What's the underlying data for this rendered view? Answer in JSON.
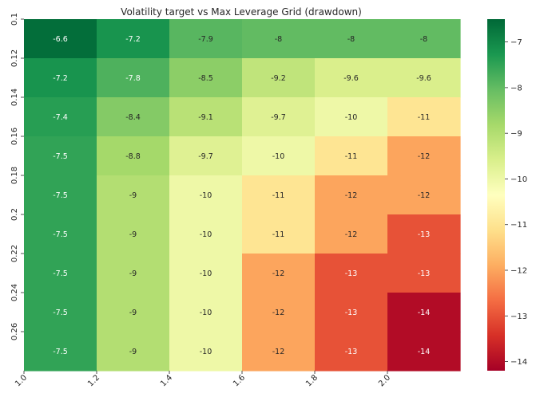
{
  "chart_data": {
    "type": "heatmap",
    "title": "Volatility target vs Max Leverage Grid (drawdown)",
    "xlabel": "",
    "ylabel": "",
    "x_tick_labels": [
      "1.0",
      "1.2",
      "1.4",
      "1.6",
      "1.8",
      "2.0"
    ],
    "y_tick_labels": [
      "0.1",
      "0.12",
      "0.14",
      "0.16",
      "0.18",
      "0.2",
      "0.22",
      "0.24",
      "0.26"
    ],
    "values": [
      [
        -6.6,
        -7.2,
        -7.9,
        -8,
        -8,
        -8
      ],
      [
        -7.2,
        -7.8,
        -8.5,
        -9.2,
        -9.6,
        -9.6
      ],
      [
        -7.4,
        -8.4,
        -9.1,
        -9.7,
        -10,
        -11
      ],
      [
        -7.5,
        -8.8,
        -9.7,
        -10,
        -11,
        -12
      ],
      [
        -7.5,
        -9,
        -10,
        -11,
        -12,
        -12
      ],
      [
        -7.5,
        -9,
        -10,
        -11,
        -12,
        -13
      ],
      [
        -7.5,
        -9,
        -10,
        -12,
        -13,
        -13
      ],
      [
        -7.5,
        -9,
        -10,
        -12,
        -13,
        -14
      ],
      [
        -7.5,
        -9,
        -10,
        -12,
        -13,
        -14
      ]
    ],
    "colorbar": {
      "colormap": "RdYlGn",
      "vmin": -14.2,
      "vmax": -6.5,
      "ticks": [
        -7,
        -8,
        -9,
        -10,
        -11,
        -12,
        -13,
        -14
      ]
    },
    "annotations": true,
    "grid": false
  }
}
